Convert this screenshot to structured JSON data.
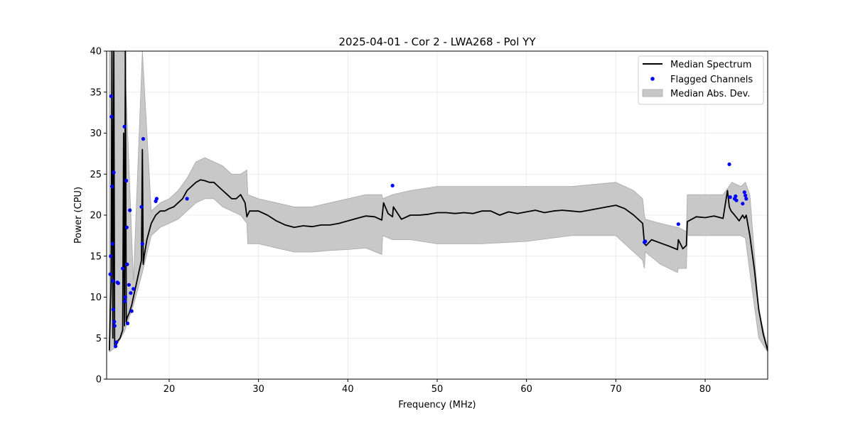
{
  "chart_data": {
    "type": "line",
    "title": "2025-04-01 - Cor 2 - LWA268 - Pol YY",
    "xlabel": "Frequency (MHz)",
    "ylabel": "Power (CPU)",
    "xlim": [
      13.0,
      87.0
    ],
    "ylim": [
      0,
      40
    ],
    "xticks": [
      20,
      30,
      40,
      50,
      60,
      70,
      80
    ],
    "yticks": [
      0,
      5,
      10,
      15,
      20,
      25,
      30,
      35,
      40
    ],
    "grid": true,
    "legend_position": "top-right",
    "series": [
      {
        "name": "Median Spectrum",
        "kind": "line",
        "color": "#000000",
        "x": [
          13.3,
          13.5,
          13.6,
          13.7,
          13.8,
          13.9,
          14.0,
          14.1,
          14.2,
          14.5,
          14.8,
          14.9,
          15.0,
          15.1,
          15.2,
          15.3,
          15.5,
          15.8,
          16.0,
          16.3,
          16.6,
          16.9,
          17.0,
          17.1,
          17.2,
          17.5,
          18.0,
          18.5,
          19.0,
          19.5,
          20.0,
          20.5,
          21.0,
          21.5,
          22.0,
          22.5,
          23.0,
          23.5,
          24.0,
          24.5,
          25.0,
          25.5,
          26.0,
          26.5,
          27.0,
          27.5,
          28.0,
          28.5,
          28.7,
          29.0,
          30.0,
          31.0,
          32.0,
          33.0,
          34.0,
          35.0,
          36.0,
          37.0,
          38.0,
          39.0,
          40.0,
          41.0,
          42.0,
          43.0,
          43.8,
          44.0,
          44.5,
          45.0,
          45.1,
          46.0,
          47.0,
          48.0,
          49.0,
          50.0,
          51.0,
          52.0,
          53.0,
          54.0,
          55.0,
          56.0,
          57.0,
          58.0,
          59.0,
          60.0,
          61.0,
          62.0,
          63.0,
          64.0,
          65.0,
          66.0,
          67.0,
          68.0,
          69.0,
          70.0,
          71.0,
          72.0,
          73.0,
          73.2,
          73.4,
          74.0,
          75.0,
          76.0,
          76.9,
          77.0,
          77.5,
          77.9,
          78.0,
          79.0,
          80.0,
          81.0,
          82.0,
          82.5,
          82.7,
          82.9,
          83.3,
          83.8,
          84.2,
          84.4,
          84.6,
          85.0,
          85.5,
          86.0,
          86.5,
          87.0
        ],
        "y": [
          3.5,
          12.0,
          40.0,
          5.0,
          40.0,
          4.2,
          4.0,
          4.3,
          4.6,
          5.0,
          6.0,
          30.0,
          6.5,
          40.0,
          7.0,
          7.5,
          8.0,
          9.0,
          10.0,
          11.5,
          13.0,
          14.5,
          28.0,
          14.0,
          15.0,
          17.0,
          19.0,
          20.0,
          20.5,
          20.5,
          20.8,
          21.0,
          21.5,
          22.0,
          23.0,
          23.5,
          24.0,
          24.3,
          24.2,
          24.0,
          24.0,
          23.5,
          23.0,
          22.5,
          22.0,
          22.0,
          22.5,
          21.5,
          19.8,
          20.5,
          20.5,
          20.0,
          19.3,
          18.8,
          18.5,
          18.7,
          18.6,
          18.8,
          18.8,
          19.0,
          19.3,
          19.6,
          19.9,
          19.8,
          19.4,
          21.5,
          20.2,
          19.8,
          21.0,
          19.5,
          20.0,
          20.0,
          20.1,
          20.3,
          20.3,
          20.2,
          20.3,
          20.2,
          20.5,
          20.5,
          20.0,
          20.4,
          20.2,
          20.4,
          20.6,
          20.3,
          20.5,
          20.6,
          20.5,
          20.4,
          20.6,
          20.8,
          21.0,
          21.2,
          20.8,
          20.0,
          19.0,
          16.5,
          16.3,
          17.0,
          16.6,
          16.2,
          15.8,
          17.0,
          15.9,
          16.3,
          19.2,
          19.8,
          19.7,
          19.9,
          19.6,
          23.0,
          21.0,
          20.5,
          20.0,
          19.3,
          20.0,
          19.6,
          20.0,
          17.5,
          13.5,
          8.5,
          5.5,
          3.5
        ]
      },
      {
        "name": "Flagged Channels",
        "kind": "scatter",
        "color": "#0000ff",
        "x": [
          13.4,
          13.45,
          13.5,
          13.55,
          13.6,
          13.65,
          13.7,
          13.75,
          13.8,
          13.85,
          13.9,
          14.0,
          14.1,
          14.2,
          14.3,
          14.8,
          15.0,
          15.05,
          15.1,
          15.2,
          15.25,
          15.3,
          15.35,
          15.5,
          15.6,
          15.7,
          15.8,
          16.0,
          16.9,
          17.0,
          17.1,
          18.5,
          18.6,
          22.0,
          45.0,
          73.2,
          73.3,
          77.0,
          82.7,
          82.8,
          83.3,
          83.4,
          83.5,
          84.2,
          84.4,
          84.5,
          84.6
        ],
        "y": [
          12.8,
          15.0,
          34.5,
          32.0,
          23.5,
          16.5,
          12.0,
          8.5,
          25.2,
          7.0,
          6.5,
          4.0,
          4.5,
          11.8,
          11.7,
          13.5,
          30.8,
          9.5,
          10.0,
          24.2,
          18.5,
          14.0,
          6.8,
          11.5,
          20.6,
          10.5,
          8.3,
          11.0,
          21.0,
          16.5,
          29.3,
          21.7,
          22.0,
          22.0,
          23.6,
          16.7,
          16.8,
          18.9,
          26.2,
          22.2,
          22.0,
          22.3,
          21.8,
          21.4,
          22.8,
          22.4,
          22.0
        ]
      },
      {
        "name": "Median Abs. Dev.",
        "kind": "band",
        "color": "#c8c8c8",
        "x": [
          13.3,
          14.0,
          15.0,
          16.0,
          17.0,
          18.0,
          19.0,
          20.0,
          21.0,
          22.0,
          22.5,
          23.0,
          24.0,
          25.0,
          26.0,
          27.0,
          28.0,
          28.7,
          28.8,
          30.0,
          32.0,
          34.0,
          36.0,
          38.0,
          40.0,
          42.0,
          43.8,
          43.9,
          45.0,
          47.0,
          50.0,
          55.0,
          60.0,
          65.0,
          70.0,
          72.0,
          73.0,
          73.2,
          73.3,
          75.0,
          76.9,
          77.0,
          77.9,
          78.0,
          80.0,
          82.0,
          83.0,
          84.0,
          84.5,
          85.0,
          86.0,
          87.0
        ],
        "lower": [
          3.3,
          3.9,
          5.8,
          9.0,
          13.0,
          17.5,
          18.5,
          19.0,
          19.5,
          20.5,
          21.0,
          21.5,
          22.0,
          22.0,
          21.0,
          20.5,
          20.0,
          19.0,
          16.5,
          16.5,
          16.0,
          15.5,
          15.5,
          15.7,
          15.8,
          16.0,
          15.2,
          17.5,
          17.0,
          17.0,
          16.5,
          16.5,
          16.8,
          17.5,
          17.5,
          15.5,
          14.5,
          13.5,
          15.5,
          14.0,
          13.0,
          13.5,
          13.5,
          17.5,
          17.5,
          17.5,
          17.5,
          17.5,
          17.2,
          13.0,
          5.0,
          3.3
        ],
        "upper": [
          40.0,
          40.0,
          40.0,
          12.0,
          40.0,
          20.5,
          21.5,
          22.0,
          23.0,
          24.5,
          25.5,
          26.5,
          27.0,
          26.5,
          26.0,
          25.0,
          25.0,
          25.5,
          22.5,
          22.0,
          21.5,
          21.0,
          21.0,
          21.5,
          22.0,
          22.5,
          22.5,
          22.0,
          22.5,
          23.0,
          23.5,
          23.5,
          23.5,
          23.5,
          24.0,
          23.0,
          22.0,
          20.0,
          19.5,
          19.0,
          18.5,
          18.5,
          18.0,
          22.5,
          22.5,
          22.5,
          24.0,
          23.5,
          24.0,
          22.5,
          8.5,
          3.7
        ]
      }
    ],
    "legend": [
      "Median Spectrum",
      "Flagged Channels",
      "Median Abs. Dev."
    ]
  }
}
